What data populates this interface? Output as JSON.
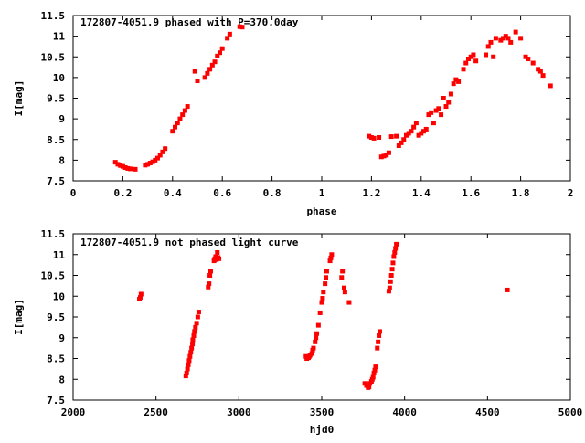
{
  "chart_data": [
    {
      "type": "scatter",
      "title": "172807-4051.9 phased with P=370.0day",
      "xlabel": "phase",
      "ylabel": "I[mag]",
      "xlim": [
        0,
        2
      ],
      "ylim": [
        11.5,
        7.5
      ],
      "y_inverted": true,
      "xticks": [
        0,
        0.2,
        0.4,
        0.6,
        0.8,
        1,
        1.2,
        1.4,
        1.6,
        1.8,
        2
      ],
      "xtick_labels": [
        "0",
        "0.2",
        "0.4",
        "0.6",
        "0.8",
        "1",
        "1.2",
        "1.4",
        "1.6",
        "1.8",
        "2"
      ],
      "yticks": [
        7.5,
        8,
        8.5,
        9,
        9.5,
        10,
        10.5,
        11,
        11.5
      ],
      "ytick_labels": [
        "7.5",
        "8",
        "8.5",
        "9",
        "9.5",
        "10",
        "10.5",
        "11",
        "11.5"
      ],
      "grid": false,
      "marker_color": "#ff0000",
      "points": [
        [
          0.17,
          7.95
        ],
        [
          0.18,
          7.9
        ],
        [
          0.19,
          7.87
        ],
        [
          0.2,
          7.85
        ],
        [
          0.21,
          7.82
        ],
        [
          0.22,
          7.8
        ],
        [
          0.23,
          7.79
        ],
        [
          0.25,
          7.78
        ],
        [
          0.29,
          7.88
        ],
        [
          0.3,
          7.9
        ],
        [
          0.31,
          7.93
        ],
        [
          0.32,
          7.96
        ],
        [
          0.33,
          8.0
        ],
        [
          0.34,
          8.05
        ],
        [
          0.35,
          8.12
        ],
        [
          0.36,
          8.2
        ],
        [
          0.37,
          8.28
        ],
        [
          0.4,
          8.7
        ],
        [
          0.41,
          8.8
        ],
        [
          0.42,
          8.9
        ],
        [
          0.43,
          9.0
        ],
        [
          0.44,
          9.1
        ],
        [
          0.45,
          9.2
        ],
        [
          0.46,
          9.3
        ],
        [
          0.49,
          10.15
        ],
        [
          0.5,
          9.92
        ],
        [
          0.53,
          10.0
        ],
        [
          0.54,
          10.1
        ],
        [
          0.55,
          10.2
        ],
        [
          0.56,
          10.3
        ],
        [
          0.57,
          10.38
        ],
        [
          0.58,
          10.52
        ],
        [
          0.59,
          10.6
        ],
        [
          0.6,
          10.7
        ],
        [
          0.62,
          10.95
        ],
        [
          0.63,
          11.05
        ],
        [
          0.67,
          11.23
        ],
        [
          0.68,
          11.22
        ],
        [
          1.19,
          8.58
        ],
        [
          1.2,
          8.55
        ],
        [
          1.21,
          8.53
        ],
        [
          1.23,
          8.55
        ],
        [
          1.24,
          8.08
        ],
        [
          1.25,
          8.1
        ],
        [
          1.26,
          8.12
        ],
        [
          1.27,
          8.18
        ],
        [
          1.28,
          8.57
        ],
        [
          1.3,
          8.58
        ],
        [
          1.31,
          8.35
        ],
        [
          1.32,
          8.42
        ],
        [
          1.33,
          8.5
        ],
        [
          1.34,
          8.6
        ],
        [
          1.35,
          8.65
        ],
        [
          1.36,
          8.7
        ],
        [
          1.37,
          8.8
        ],
        [
          1.38,
          8.9
        ],
        [
          1.39,
          8.6
        ],
        [
          1.4,
          8.65
        ],
        [
          1.41,
          8.7
        ],
        [
          1.42,
          8.75
        ],
        [
          1.43,
          9.1
        ],
        [
          1.44,
          9.15
        ],
        [
          1.45,
          8.9
        ],
        [
          1.46,
          9.2
        ],
        [
          1.47,
          9.25
        ],
        [
          1.48,
          9.1
        ],
        [
          1.49,
          9.5
        ],
        [
          1.5,
          9.3
        ],
        [
          1.51,
          9.4
        ],
        [
          1.52,
          9.6
        ],
        [
          1.53,
          9.85
        ],
        [
          1.54,
          9.95
        ],
        [
          1.55,
          9.9
        ],
        [
          1.57,
          10.2
        ],
        [
          1.58,
          10.35
        ],
        [
          1.59,
          10.45
        ],
        [
          1.6,
          10.5
        ],
        [
          1.61,
          10.55
        ],
        [
          1.62,
          10.4
        ],
        [
          1.66,
          10.55
        ],
        [
          1.67,
          10.75
        ],
        [
          1.68,
          10.85
        ],
        [
          1.69,
          10.5
        ],
        [
          1.7,
          10.95
        ],
        [
          1.72,
          10.9
        ],
        [
          1.73,
          10.95
        ],
        [
          1.74,
          11.0
        ],
        [
          1.75,
          10.95
        ],
        [
          1.76,
          10.85
        ],
        [
          1.78,
          11.1
        ],
        [
          1.8,
          10.95
        ],
        [
          1.82,
          10.5
        ],
        [
          1.83,
          10.45
        ],
        [
          1.85,
          10.35
        ],
        [
          1.87,
          10.2
        ],
        [
          1.88,
          10.15
        ],
        [
          1.89,
          10.05
        ],
        [
          1.92,
          9.8
        ]
      ]
    },
    {
      "type": "scatter",
      "title": "172807-4051.9 not phased light curve",
      "xlabel": "hjd0",
      "ylabel": "I[mag]",
      "xlim": [
        2000,
        5000
      ],
      "ylim": [
        11.5,
        7.5
      ],
      "y_inverted": true,
      "xticks": [
        2000,
        2500,
        3000,
        3500,
        4000,
        4500,
        5000
      ],
      "xtick_labels": [
        "2000",
        "2500",
        "3000",
        "3500",
        "4000",
        "4500",
        "5000"
      ],
      "yticks": [
        7.5,
        8,
        8.5,
        9,
        9.5,
        10,
        10.5,
        11,
        11.5
      ],
      "ytick_labels": [
        "7.5",
        "8",
        "8.5",
        "9",
        "9.5",
        "10",
        "10.5",
        "11",
        "11.5"
      ],
      "grid": false,
      "marker_color": "#ff0000",
      "points": [
        [
          2400,
          9.93
        ],
        [
          2405,
          9.97
        ],
        [
          2410,
          10.05
        ],
        [
          2680,
          8.08
        ],
        [
          2685,
          8.15
        ],
        [
          2690,
          8.25
        ],
        [
          2695,
          8.35
        ],
        [
          2700,
          8.45
        ],
        [
          2705,
          8.55
        ],
        [
          2710,
          8.65
        ],
        [
          2715,
          8.75
        ],
        [
          2720,
          8.85
        ],
        [
          2722,
          8.95
        ],
        [
          2728,
          9.05
        ],
        [
          2732,
          9.15
        ],
        [
          2738,
          9.25
        ],
        [
          2745,
          9.35
        ],
        [
          2752,
          9.5
        ],
        [
          2758,
          9.62
        ],
        [
          2815,
          10.22
        ],
        [
          2820,
          10.3
        ],
        [
          2825,
          10.5
        ],
        [
          2830,
          10.6
        ],
        [
          2850,
          10.85
        ],
        [
          2855,
          10.9
        ],
        [
          2860,
          10.95
        ],
        [
          2865,
          10.88
        ],
        [
          2870,
          11.05
        ],
        [
          2875,
          10.93
        ],
        [
          2880,
          10.9
        ],
        [
          3405,
          8.55
        ],
        [
          3410,
          8.5
        ],
        [
          3420,
          8.52
        ],
        [
          3425,
          8.55
        ],
        [
          3430,
          8.58
        ],
        [
          3440,
          8.62
        ],
        [
          3445,
          8.7
        ],
        [
          3450,
          8.75
        ],
        [
          3460,
          8.9
        ],
        [
          3465,
          9.0
        ],
        [
          3470,
          9.1
        ],
        [
          3480,
          9.3
        ],
        [
          3490,
          9.6
        ],
        [
          3500,
          9.85
        ],
        [
          3505,
          9.95
        ],
        [
          3510,
          10.1
        ],
        [
          3520,
          10.3
        ],
        [
          3525,
          10.45
        ],
        [
          3530,
          10.6
        ],
        [
          3550,
          10.85
        ],
        [
          3555,
          10.92
        ],
        [
          3560,
          11.0
        ],
        [
          3620,
          10.45
        ],
        [
          3625,
          10.6
        ],
        [
          3635,
          10.2
        ],
        [
          3640,
          10.1
        ],
        [
          3665,
          9.85
        ],
        [
          3760,
          7.9
        ],
        [
          3770,
          7.85
        ],
        [
          3780,
          7.8
        ],
        [
          3785,
          7.82
        ],
        [
          3790,
          7.9
        ],
        [
          3800,
          7.95
        ],
        [
          3805,
          8.0
        ],
        [
          3810,
          8.05
        ],
        [
          3815,
          8.15
        ],
        [
          3820,
          8.22
        ],
        [
          3825,
          8.3
        ],
        [
          3835,
          8.75
        ],
        [
          3840,
          8.9
        ],
        [
          3845,
          9.05
        ],
        [
          3850,
          9.15
        ],
        [
          3905,
          10.12
        ],
        [
          3910,
          10.2
        ],
        [
          3915,
          10.35
        ],
        [
          3920,
          10.5
        ],
        [
          3925,
          10.65
        ],
        [
          3930,
          10.8
        ],
        [
          3935,
          10.95
        ],
        [
          3940,
          11.05
        ],
        [
          3945,
          11.15
        ],
        [
          3950,
          11.25
        ],
        [
          4620,
          10.15
        ]
      ]
    }
  ]
}
